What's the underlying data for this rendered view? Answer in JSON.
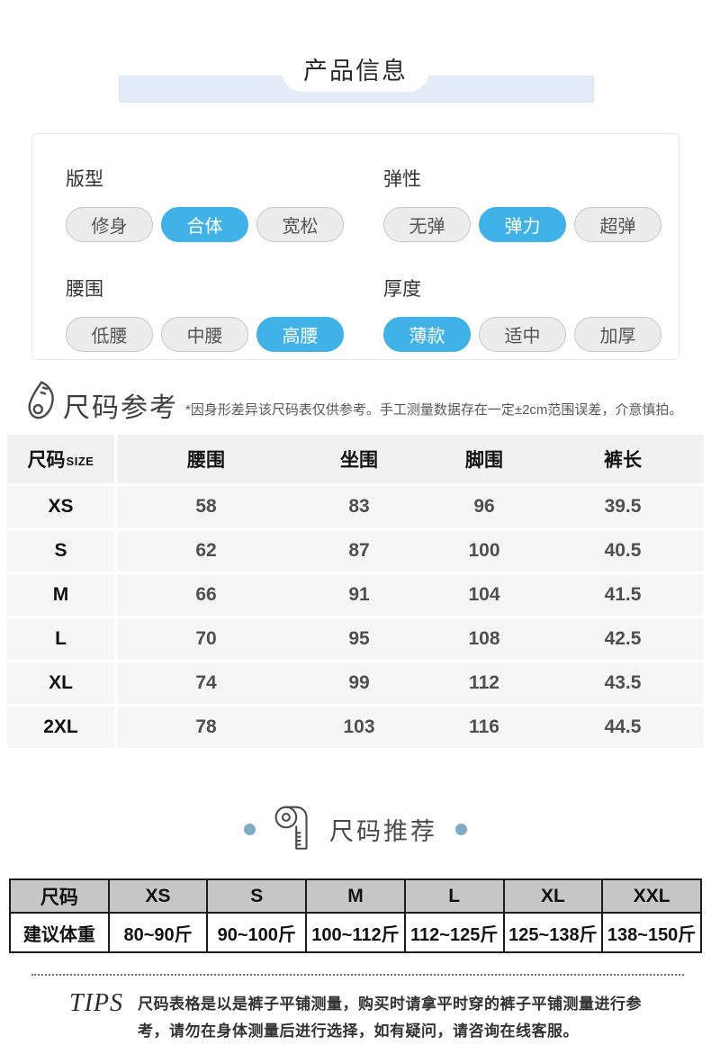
{
  "page": {
    "title": "产品信息"
  },
  "colors": {
    "accent_blue": "#41b2e8",
    "banner_blue": "#e4edf7",
    "dot_blue": "#7fabc4",
    "pill_gray": "#ececec",
    "table_row_gray": "#f6f6f6",
    "weight_header_gray": "#c6c6c6"
  },
  "icons": {
    "size_reference": "curve-ruler-icon",
    "size_recommend": "tape-measure-icon"
  },
  "attributes": {
    "groups": [
      {
        "label": "版型",
        "options": [
          {
            "label": "修身",
            "selected": false
          },
          {
            "label": "合体",
            "selected": true
          },
          {
            "label": "宽松",
            "selected": false
          }
        ]
      },
      {
        "label": "弹性",
        "options": [
          {
            "label": "无弹",
            "selected": false
          },
          {
            "label": "弹力",
            "selected": true
          },
          {
            "label": "超弹",
            "selected": false
          }
        ]
      },
      {
        "label": "腰围",
        "options": [
          {
            "label": "低腰",
            "selected": false
          },
          {
            "label": "中腰",
            "selected": false
          },
          {
            "label": "高腰",
            "selected": true
          }
        ]
      },
      {
        "label": "厚度",
        "options": [
          {
            "label": "薄款",
            "selected": true
          },
          {
            "label": "适中",
            "selected": false
          },
          {
            "label": "加厚",
            "selected": false
          }
        ]
      }
    ]
  },
  "size_reference": {
    "title": "尺码参考",
    "note": "*因身形差异该尺码表仅供参考。手工测量数据存在一定±2cm范围误差，介意慎拍。",
    "table": {
      "first_header_main": "尺码",
      "first_header_sub": "SIZE",
      "headers": [
        "腰围",
        "坐围",
        "脚围",
        "裤长"
      ],
      "rows": [
        {
          "size": "XS",
          "values": [
            "58",
            "83",
            "96",
            "39.5"
          ]
        },
        {
          "size": "S",
          "values": [
            "62",
            "87",
            "100",
            "40.5"
          ]
        },
        {
          "size": "M",
          "values": [
            "66",
            "91",
            "104",
            "41.5"
          ]
        },
        {
          "size": "L",
          "values": [
            "70",
            "95",
            "108",
            "42.5"
          ]
        },
        {
          "size": "XL",
          "values": [
            "74",
            "99",
            "112",
            "43.5"
          ]
        },
        {
          "size": "2XL",
          "values": [
            "78",
            "103",
            "116",
            "44.5"
          ]
        }
      ]
    }
  },
  "size_recommend": {
    "title": "尺码推荐",
    "table": {
      "headers": [
        "尺码",
        "XS",
        "S",
        "M",
        "L",
        "XL",
        "XXL"
      ],
      "row_label": "建议体重",
      "row_values": [
        "80~90斤",
        "90~100斤",
        "100~112斤",
        "112~125斤",
        "125~138斤",
        "138~150斤"
      ]
    }
  },
  "tips": {
    "label": "TIPS",
    "text": "尺码表格是以是裤子平铺测量，购买时请拿平时穿的裤子平铺测量进行参考，请勿在身体测量后进行选择，如有疑问，请咨询在线客服。"
  }
}
